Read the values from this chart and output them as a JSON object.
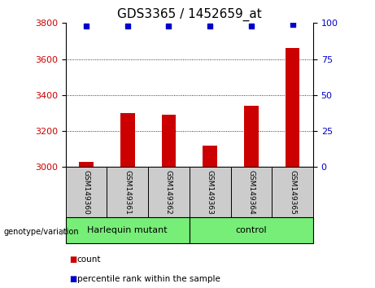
{
  "title": "GDS3365 / 1452659_at",
  "categories": [
    "GSM149360",
    "GSM149361",
    "GSM149362",
    "GSM149363",
    "GSM149364",
    "GSM149365"
  ],
  "bar_values": [
    3030,
    3300,
    3290,
    3120,
    3340,
    3660
  ],
  "percentile_values": [
    98,
    98,
    98,
    98,
    98,
    99
  ],
  "ylim_left": [
    3000,
    3800
  ],
  "ylim_right": [
    0,
    100
  ],
  "yticks_left": [
    3000,
    3200,
    3400,
    3600,
    3800
  ],
  "yticks_right": [
    0,
    25,
    50,
    75,
    100
  ],
  "bar_color": "#cc0000",
  "dot_color": "#0000cc",
  "group1_label": "Harlequin mutant",
  "group2_label": "control",
  "group_bg_color": "#77ee77",
  "sample_bg_color": "#cccccc",
  "legend_count_label": "count",
  "legend_pct_label": "percentile rank within the sample",
  "genotype_label": "genotype/variation",
  "title_fontsize": 11,
  "tick_fontsize": 8,
  "bar_width": 0.35
}
